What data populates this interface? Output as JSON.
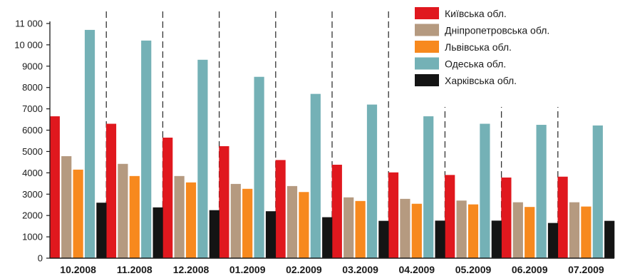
{
  "chart_data": {
    "type": "bar",
    "categories": [
      "10.2008",
      "11.2008",
      "12.2008",
      "01.2009",
      "02.2009",
      "03.2009",
      "04.2009",
      "05.2009",
      "06.2009",
      "07.2009"
    ],
    "series": [
      {
        "name": "Київська обл.",
        "color": "#e0181e",
        "values": [
          6650,
          6300,
          5650,
          5250,
          4600,
          4380,
          4020,
          3900,
          3780,
          3820
        ]
      },
      {
        "name": "Дніпропетровська обл.",
        "color": "#b59a80",
        "values": [
          4780,
          4420,
          3850,
          3480,
          3380,
          2850,
          2780,
          2700,
          2620,
          2620
        ]
      },
      {
        "name": "Львівська обл.",
        "color": "#f7891e",
        "values": [
          4150,
          3850,
          3550,
          3250,
          3100,
          2680,
          2550,
          2520,
          2400,
          2420
        ]
      },
      {
        "name": "Одеська обл.",
        "color": "#74b1b6",
        "values": [
          10700,
          10200,
          9300,
          8500,
          7700,
          7200,
          6650,
          6300,
          6250,
          6220
        ]
      },
      {
        "name": "Харківська обл.",
        "color": "#141414",
        "values": [
          2600,
          2380,
          2250,
          2200,
          1920,
          1750,
          1760,
          1760,
          1650,
          1750
        ]
      }
    ],
    "yticks": [
      0,
      1000,
      2000,
      3000,
      4000,
      5000,
      6000,
      7000,
      8000,
      9000,
      10000,
      11000
    ],
    "ytick_labels": [
      "0",
      "1000",
      "2000",
      "3000",
      "4000",
      "5000",
      "6000",
      "7000",
      "8000",
      "9000",
      "10 000",
      "11 000"
    ],
    "ylim": [
      0,
      11700
    ],
    "grid": false,
    "legend_position": "top-right",
    "title": "",
    "xlabel": "",
    "ylabel": ""
  }
}
